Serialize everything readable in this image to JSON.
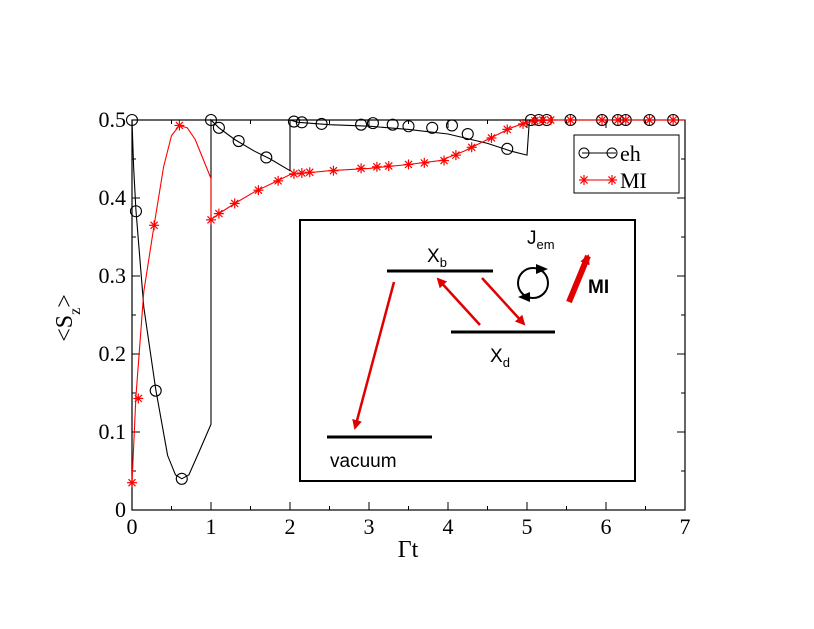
{
  "chart_data": {
    "type": "line",
    "ylabel_main": "<S",
    "ylabel_sub": "z",
    "ylabel_close": ">",
    "xlabel": "Γt",
    "xlim": [
      0,
      7
    ],
    "ylim": [
      0,
      0.5
    ],
    "x_ticks": [
      "0",
      "1",
      "2",
      "3",
      "4",
      "5",
      "6",
      "7"
    ],
    "y_ticks": [
      "0",
      "0.1",
      "0.2",
      "0.3",
      "0.4",
      "0.5"
    ],
    "grid": false,
    "legend_position": "top-right",
    "colors": {
      "eh": "#000000",
      "MI": "#ff0000"
    },
    "series": [
      {
        "name": "eh",
        "marker": "circle",
        "line": [
          [
            0,
            0.5
          ],
          [
            0.02,
            0.44
          ],
          [
            0.05,
            0.385
          ],
          [
            0.15,
            0.26
          ],
          [
            0.3,
            0.155
          ],
          [
            0.45,
            0.07
          ],
          [
            0.55,
            0.045
          ],
          [
            0.63,
            0.04
          ],
          [
            0.72,
            0.045
          ],
          [
            0.85,
            0.075
          ],
          [
            1.0,
            0.11
          ],
          [
            1.0,
            0.5
          ],
          [
            1.1,
            0.49
          ],
          [
            1.3,
            0.475
          ],
          [
            1.55,
            0.46
          ],
          [
            1.75,
            0.45
          ],
          [
            2.0,
            0.435
          ],
          [
            2.0,
            0.5
          ],
          [
            2.1,
            0.497
          ],
          [
            2.5,
            0.494
          ],
          [
            3.0,
            0.492
          ],
          [
            3.5,
            0.488
          ],
          [
            4.0,
            0.482
          ],
          [
            4.5,
            0.47
          ],
          [
            4.8,
            0.46
          ],
          [
            5.0,
            0.455
          ],
          [
            5.03,
            0.5
          ],
          [
            7.0,
            0.5
          ]
        ],
        "markers": [
          [
            0,
            0.5
          ],
          [
            0.05,
            0.383
          ],
          [
            0.3,
            0.153
          ],
          [
            0.63,
            0.04
          ],
          [
            1.0,
            0.5
          ],
          [
            1.1,
            0.49
          ],
          [
            1.35,
            0.473
          ],
          [
            1.7,
            0.452
          ],
          [
            2.05,
            0.498
          ],
          [
            2.15,
            0.497
          ],
          [
            2.4,
            0.495
          ],
          [
            2.9,
            0.494
          ],
          [
            3.05,
            0.496
          ],
          [
            3.3,
            0.494
          ],
          [
            3.5,
            0.492
          ],
          [
            3.8,
            0.49
          ],
          [
            4.05,
            0.493
          ],
          [
            4.25,
            0.482
          ],
          [
            4.75,
            0.463
          ],
          [
            5.05,
            0.5
          ],
          [
            5.15,
            0.5
          ],
          [
            5.25,
            0.5
          ],
          [
            5.55,
            0.5
          ],
          [
            5.95,
            0.5
          ],
          [
            6.15,
            0.5
          ],
          [
            6.25,
            0.5
          ],
          [
            6.55,
            0.5
          ],
          [
            6.85,
            0.5
          ]
        ]
      },
      {
        "name": "MI",
        "marker": "star",
        "line": [
          [
            0,
            0.035
          ],
          [
            0.05,
            0.145
          ],
          [
            0.15,
            0.28
          ],
          [
            0.28,
            0.365
          ],
          [
            0.4,
            0.44
          ],
          [
            0.5,
            0.48
          ],
          [
            0.6,
            0.493
          ],
          [
            0.7,
            0.49
          ],
          [
            0.8,
            0.475
          ],
          [
            0.9,
            0.45
          ],
          [
            1.0,
            0.425
          ],
          [
            1.0,
            0.372
          ],
          [
            1.1,
            0.38
          ],
          [
            1.3,
            0.393
          ],
          [
            1.55,
            0.408
          ],
          [
            1.8,
            0.42
          ],
          [
            2.0,
            0.43
          ],
          [
            2.2,
            0.432
          ],
          [
            2.5,
            0.435
          ],
          [
            3.0,
            0.438
          ],
          [
            3.5,
            0.443
          ],
          [
            3.9,
            0.448
          ],
          [
            4.2,
            0.46
          ],
          [
            4.5,
            0.475
          ],
          [
            4.8,
            0.49
          ],
          [
            5.0,
            0.497
          ],
          [
            5.3,
            0.5
          ],
          [
            7.0,
            0.5
          ]
        ],
        "markers": [
          [
            0,
            0.035
          ],
          [
            0.08,
            0.143
          ],
          [
            0.28,
            0.365
          ],
          [
            0.6,
            0.493
          ],
          [
            1.0,
            0.372
          ],
          [
            1.1,
            0.38
          ],
          [
            1.3,
            0.393
          ],
          [
            1.6,
            0.41
          ],
          [
            1.85,
            0.422
          ],
          [
            2.05,
            0.431
          ],
          [
            2.15,
            0.432
          ],
          [
            2.25,
            0.433
          ],
          [
            2.55,
            0.435
          ],
          [
            2.9,
            0.438
          ],
          [
            3.1,
            0.44
          ],
          [
            3.25,
            0.441
          ],
          [
            3.5,
            0.443
          ],
          [
            3.7,
            0.445
          ],
          [
            3.95,
            0.448
          ],
          [
            4.1,
            0.455
          ],
          [
            4.3,
            0.465
          ],
          [
            4.55,
            0.477
          ],
          [
            4.75,
            0.488
          ],
          [
            4.95,
            0.495
          ],
          [
            5.1,
            0.499
          ],
          [
            5.2,
            0.5
          ],
          [
            5.3,
            0.5
          ],
          [
            5.55,
            0.5
          ],
          [
            5.95,
            0.5
          ],
          [
            6.15,
            0.5
          ],
          [
            6.25,
            0.5
          ],
          [
            6.55,
            0.5
          ],
          [
            6.85,
            0.5
          ]
        ]
      }
    ]
  },
  "inset": {
    "xb_main": "X",
    "xb_sub": "b",
    "xd_main": "X",
    "xd_sub": "d",
    "jem_main": "J",
    "jem_sub": "em",
    "mi_label": "MI",
    "vacuum_label": "vacuum"
  }
}
